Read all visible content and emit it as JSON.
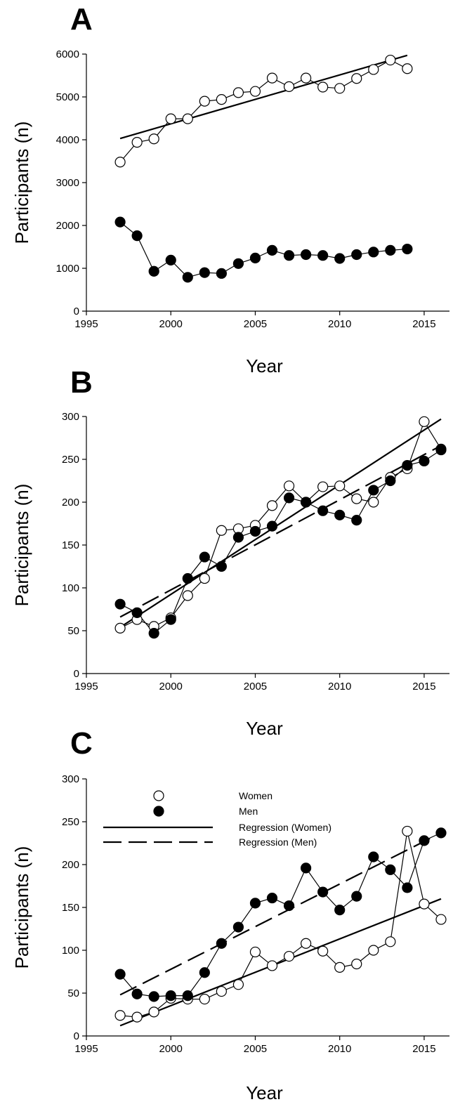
{
  "chart_data": [
    {
      "panel": "A",
      "type": "line",
      "xlabel": "Year",
      "ylabel": "Participants (n)",
      "xlim": [
        1995,
        2016.5
      ],
      "ylim": [
        0,
        6000
      ],
      "xticks": [
        1995,
        2000,
        2005,
        2010,
        2015
      ],
      "yticks": [
        0,
        1000,
        2000,
        3000,
        4000,
        5000,
        6000
      ],
      "series": [
        {
          "name": "Women",
          "marker": "open-circle",
          "x": [
            1997,
            1998,
            1999,
            2000,
            2001,
            2002,
            2003,
            2004,
            2005,
            2006,
            2007,
            2008,
            2009,
            2010,
            2011,
            2012,
            2013,
            2014
          ],
          "values": [
            3480,
            3940,
            4020,
            4490,
            4490,
            4900,
            4940,
            5100,
            5130,
            5440,
            5240,
            5440,
            5230,
            5200,
            5430,
            5640,
            5860,
            5660
          ]
        },
        {
          "name": "Men",
          "marker": "filled-circle",
          "x": [
            1997,
            1998,
            1999,
            2000,
            2001,
            2002,
            2003,
            2004,
            2005,
            2006,
            2007,
            2008,
            2009,
            2010,
            2011,
            2012,
            2013,
            2014
          ],
          "values": [
            2080,
            1760,
            930,
            1190,
            790,
            900,
            880,
            1110,
            1240,
            1420,
            1300,
            1320,
            1300,
            1230,
            1320,
            1380,
            1420,
            1450
          ]
        }
      ],
      "regressions": [
        {
          "name": "Regression (Women)",
          "style": "solid",
          "x": [
            1997,
            2014
          ],
          "values": [
            4030,
            5970
          ]
        }
      ]
    },
    {
      "panel": "B",
      "type": "line",
      "xlabel": "Year",
      "ylabel": "Participants (n)",
      "xlim": [
        1995,
        2016.5
      ],
      "ylim": [
        0,
        300
      ],
      "xticks": [
        1995,
        2000,
        2005,
        2010,
        2015
      ],
      "yticks": [
        0,
        50,
        100,
        150,
        200,
        250,
        300
      ],
      "series": [
        {
          "name": "Women",
          "marker": "open-circle",
          "x": [
            1997,
            1998,
            1999,
            2000,
            2001,
            2002,
            2003,
            2004,
            2005,
            2006,
            2007,
            2008,
            2009,
            2010,
            2011,
            2012,
            2013,
            2014,
            2015,
            2016
          ],
          "values": [
            53,
            63,
            55,
            65,
            91,
            111,
            167,
            169,
            173,
            196,
            219,
            200,
            218,
            219,
            204,
            200,
            229,
            239,
            294,
            262
          ]
        },
        {
          "name": "Men",
          "marker": "filled-circle",
          "x": [
            1997,
            1998,
            1999,
            2000,
            2001,
            2002,
            2003,
            2004,
            2005,
            2006,
            2007,
            2008,
            2009,
            2010,
            2011,
            2012,
            2013,
            2014,
            2015,
            2016
          ],
          "values": [
            81,
            71,
            47,
            63,
            111,
            136,
            125,
            159,
            166,
            172,
            205,
            200,
            190,
            185,
            179,
            214,
            225,
            243,
            248,
            261
          ]
        }
      ],
      "regressions": [
        {
          "name": "Regression (Women)",
          "style": "solid",
          "x": [
            1997,
            2016
          ],
          "values": [
            54,
            297
          ]
        },
        {
          "name": "Regression (Men)",
          "style": "dashed",
          "x": [
            1997,
            2016
          ],
          "values": [
            66,
            266
          ]
        }
      ]
    },
    {
      "panel": "C",
      "type": "line",
      "xlabel": "Year",
      "ylabel": "Participants (n)",
      "xlim": [
        1995,
        2016.5
      ],
      "ylim": [
        0,
        300
      ],
      "xticks": [
        1995,
        2000,
        2005,
        2010,
        2015
      ],
      "yticks": [
        0,
        50,
        100,
        150,
        200,
        250,
        300
      ],
      "legend": {
        "placement": "top-left",
        "entries": [
          {
            "label": "Women",
            "kind": "open-circle"
          },
          {
            "label": "Men",
            "kind": "filled-circle"
          },
          {
            "label": "Regression (Women)",
            "kind": "solid"
          },
          {
            "label": "Regression (Men)",
            "kind": "dashed"
          }
        ]
      },
      "series": [
        {
          "name": "Women",
          "marker": "open-circle",
          "x": [
            1997,
            1998,
            1999,
            2000,
            2001,
            2002,
            2003,
            2004,
            2005,
            2006,
            2007,
            2008,
            2009,
            2010,
            2011,
            2012,
            2013,
            2014,
            2015,
            2016
          ],
          "values": [
            24,
            22,
            28,
            44,
            43,
            43,
            52,
            60,
            98,
            82,
            93,
            108,
            99,
            80,
            84,
            100,
            110,
            239,
            154,
            136
          ]
        },
        {
          "name": "Men",
          "marker": "filled-circle",
          "x": [
            1997,
            1998,
            1999,
            2000,
            2001,
            2002,
            2003,
            2004,
            2005,
            2006,
            2007,
            2008,
            2009,
            2010,
            2011,
            2012,
            2013,
            2014,
            2015,
            2016
          ],
          "values": [
            72,
            49,
            46,
            47,
            47,
            74,
            108,
            127,
            155,
            161,
            152,
            196,
            168,
            147,
            163,
            209,
            194,
            173,
            228,
            237
          ]
        }
      ],
      "regressions": [
        {
          "name": "Regression (Women)",
          "style": "solid",
          "x": [
            1997,
            2016
          ],
          "values": [
            12,
            160
          ]
        },
        {
          "name": "Regression (Men)",
          "style": "dashed",
          "x": [
            1997,
            2016
          ],
          "values": [
            48,
            237
          ]
        }
      ]
    }
  ]
}
